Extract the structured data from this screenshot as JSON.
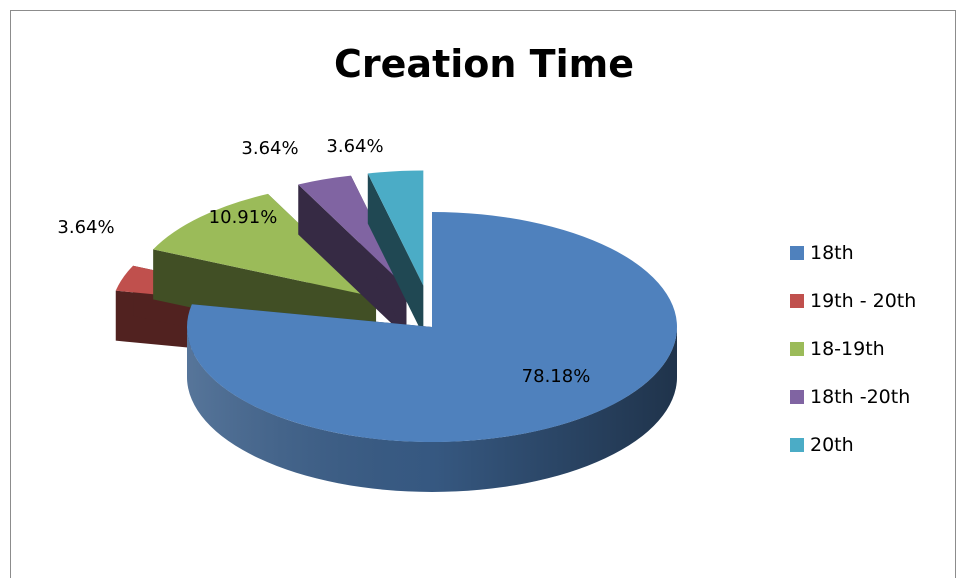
{
  "chart_data": {
    "type": "pie",
    "title": "Creation Time",
    "categories": [
      "18th",
      "19th - 20th",
      "18-19th",
      "18th -20th",
      "20th"
    ],
    "values": [
      78.18,
      3.64,
      10.91,
      3.64,
      3.64
    ],
    "value_labels": [
      "78.18%",
      "3.64%",
      "10.91%",
      "3.64%",
      "3.64%"
    ],
    "colors": [
      "#4f81bd",
      "#c0504d",
      "#9bbb59",
      "#8064a2",
      "#4bacc6"
    ],
    "style": "3d-exploded",
    "legend_position": "right"
  }
}
